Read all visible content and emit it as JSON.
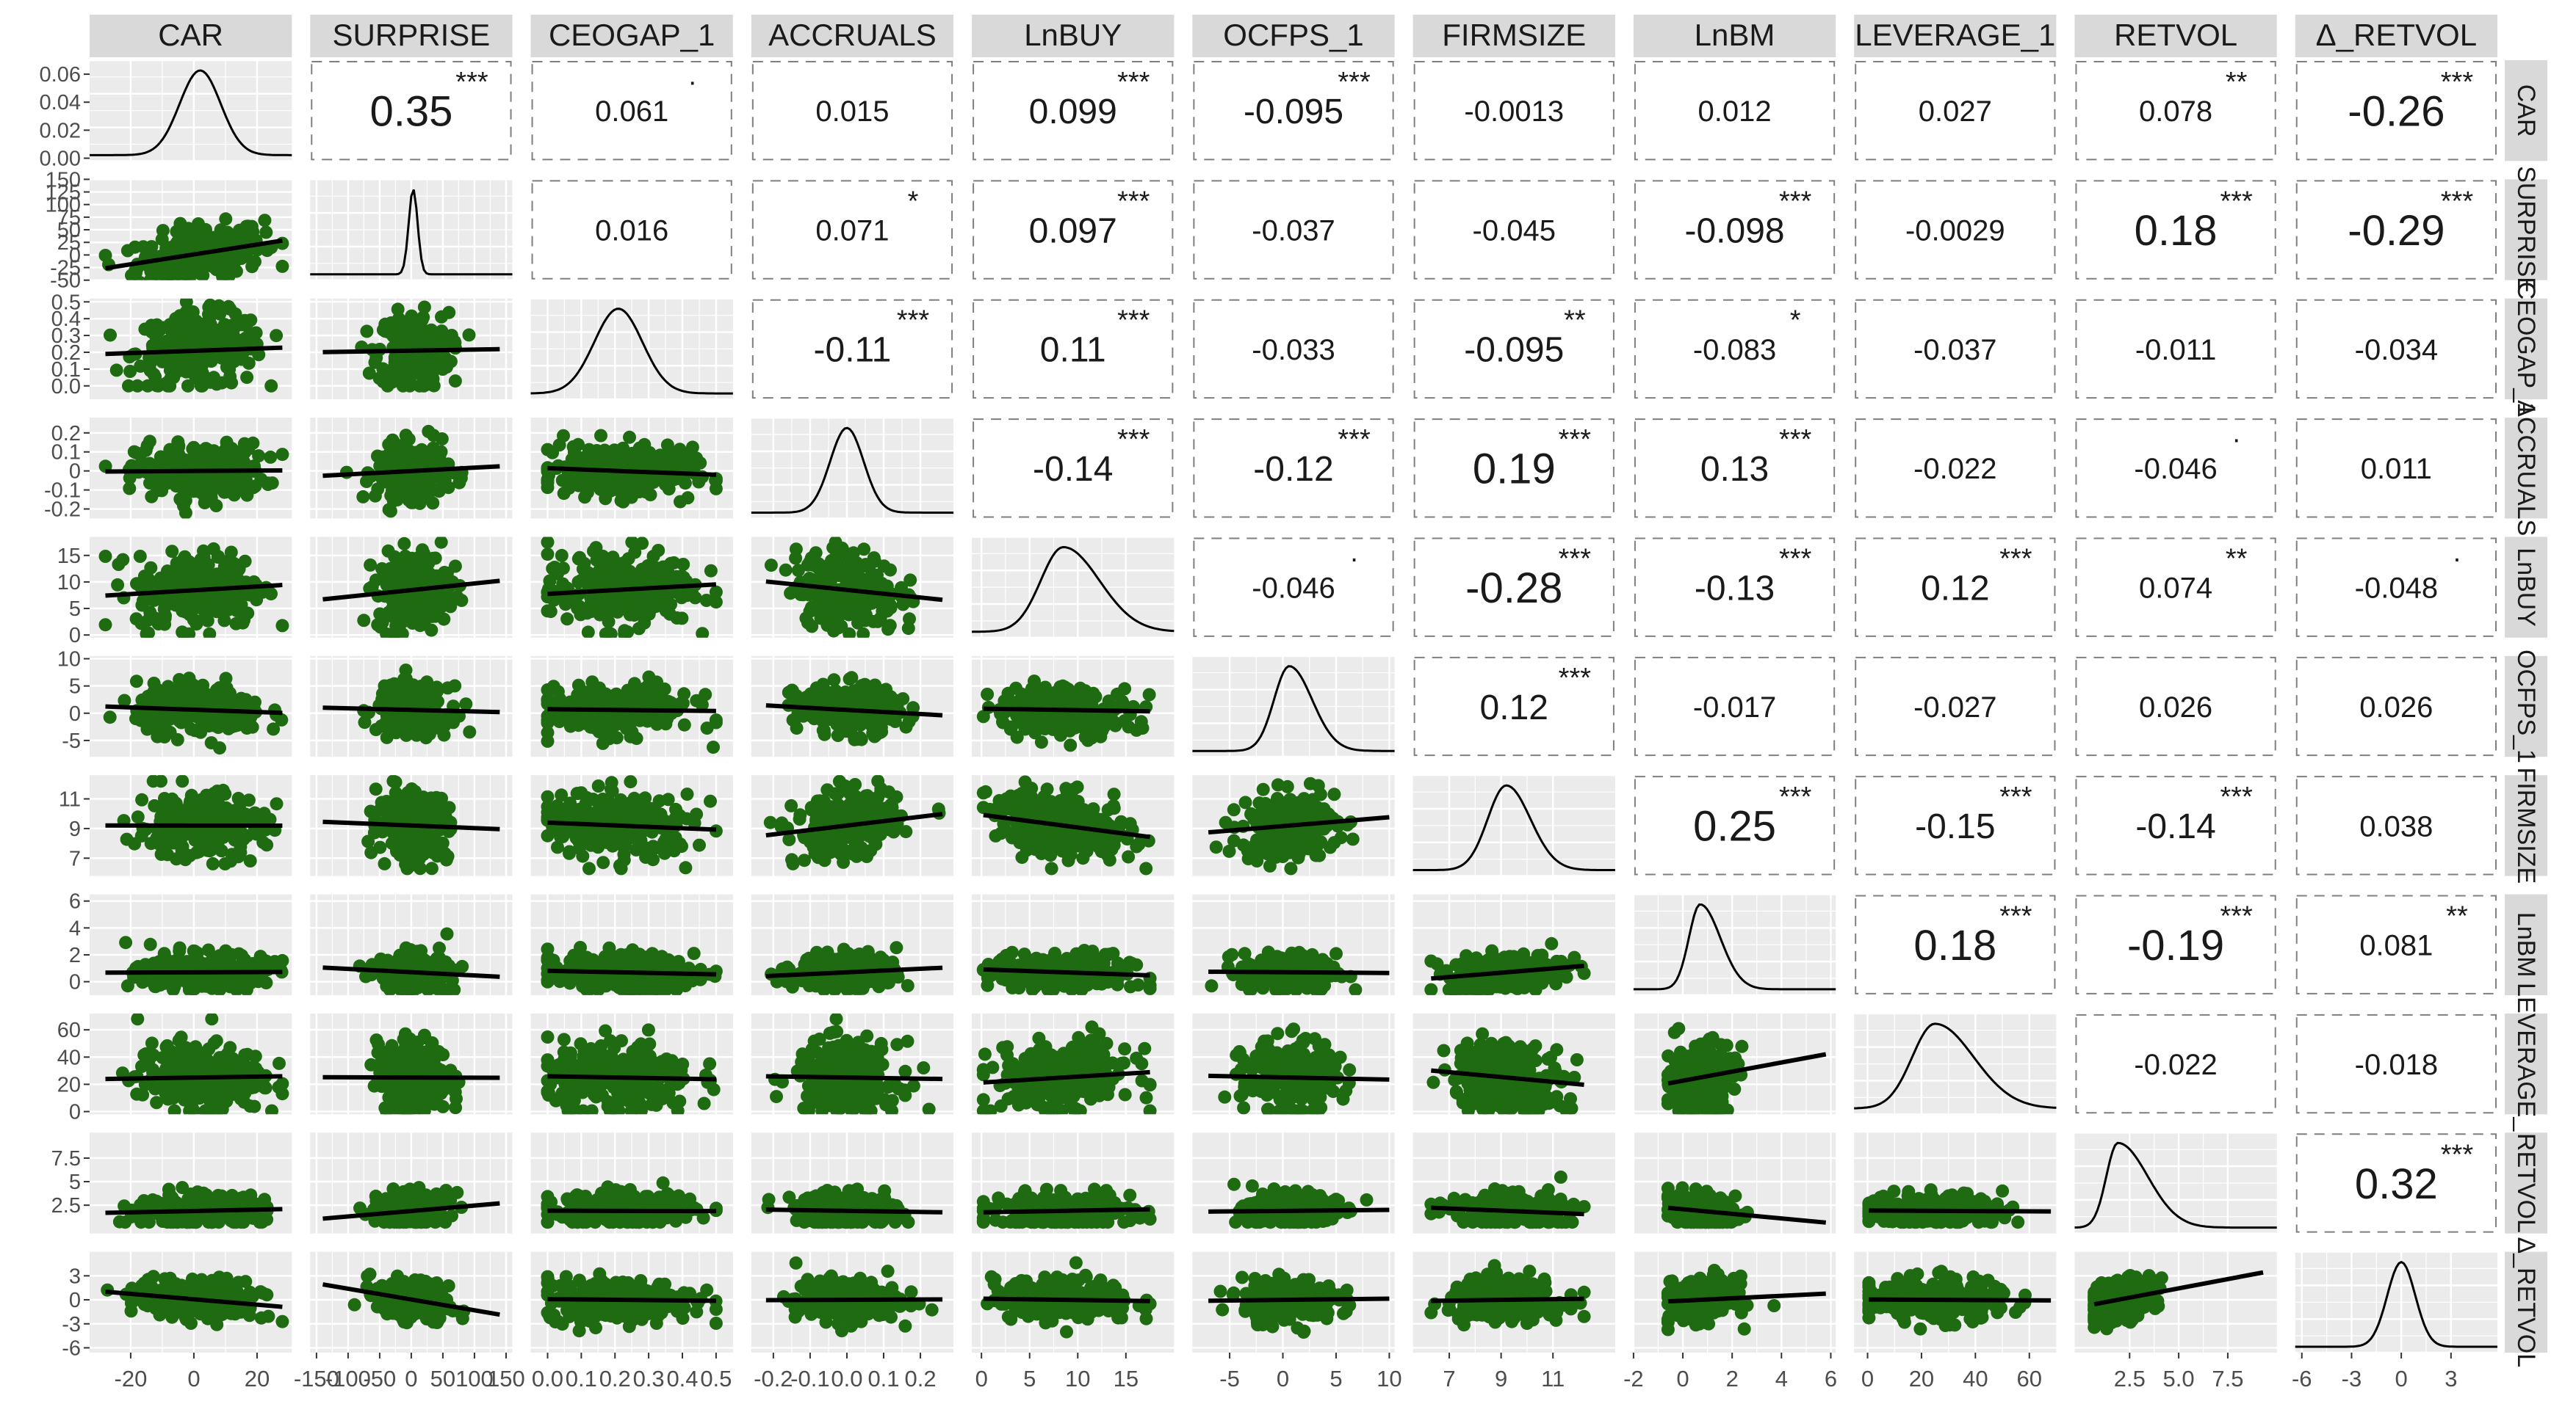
{
  "chart_data": {
    "type": "scatter-matrix",
    "variables": [
      "CAR",
      "SURPRISE",
      "CEOGAP_1",
      "ACCRUALS",
      "LnBUY",
      "OCFPS_1",
      "FIRMSIZE",
      "LnBM",
      "LEVERAGE_1",
      "RETVOL",
      "Δ_RETVOL"
    ],
    "axes": [
      {
        "range": [
          -33,
          31
        ],
        "ticks": [
          -20,
          0,
          20
        ],
        "tick_labels": [
          "-20",
          "0",
          "20"
        ]
      },
      {
        "range": [
          -160,
          160
        ],
        "ticks": [
          -150,
          -100,
          -50,
          0,
          50,
          100,
          150
        ],
        "tick_labels": [
          "-150",
          "-100",
          "-50",
          "0",
          "50",
          "100",
          "150"
        ],
        "row_range": [
          -50,
          150
        ],
        "row_ticks": [
          -50,
          -25,
          0,
          25,
          50,
          75,
          100,
          125,
          150
        ],
        "row_tick_labels": [
          "-50",
          "-25",
          "0",
          "25",
          "50",
          "75",
          "100",
          "125",
          "150"
        ]
      },
      {
        "range": [
          -0.05,
          0.55
        ],
        "ticks": [
          0.0,
          0.1,
          0.2,
          0.3,
          0.4,
          0.5
        ],
        "tick_labels": [
          "0.0",
          "0.1",
          "0.2",
          "0.3",
          "0.4",
          "0.5"
        ],
        "row_range": [
          -0.08,
          0.52
        ]
      },
      {
        "range": [
          -0.26,
          0.29
        ],
        "ticks": [
          -0.2,
          -0.1,
          0.0,
          0.1,
          0.2
        ],
        "tick_labels": [
          "-0.2",
          "-0.1",
          "0.0",
          "0.1",
          "0.2"
        ],
        "row_range": [
          -0.25,
          0.28
        ],
        "row_ticks": [
          -0.2,
          -0.1,
          0.0,
          0.1,
          0.2
        ]
      },
      {
        "range": [
          -1,
          20
        ],
        "ticks": [
          0,
          5,
          10,
          15
        ],
        "tick_labels": [
          "0",
          "5",
          "10",
          "15"
        ],
        "row_range": [
          -0.5,
          18.5
        ]
      },
      {
        "range": [
          -8.5,
          10.5
        ],
        "ticks": [
          -5,
          0,
          5,
          10
        ],
        "tick_labels": [
          "-5",
          "0",
          "5",
          "10"
        ],
        "row_range": [
          -8,
          10.5
        ]
      },
      {
        "range": [
          5.6,
          13.4
        ],
        "ticks": [
          7,
          9,
          11
        ],
        "tick_labels": [
          "7",
          "9",
          "11"
        ],
        "row_range": [
          5.8,
          12.6
        ]
      },
      {
        "range": [
          -2,
          6.2
        ],
        "ticks": [
          -2,
          0,
          2,
          4,
          6
        ],
        "tick_labels": [
          "-2",
          "0",
          "2",
          "4",
          "6"
        ],
        "row_range": [
          -1,
          6.5
        ],
        "row_ticks": [
          0,
          2,
          4,
          6
        ]
      },
      {
        "range": [
          -5,
          70
        ],
        "ticks": [
          0,
          20,
          40,
          60
        ],
        "tick_labels": [
          "0",
          "20",
          "40",
          "60"
        ],
        "row_range": [
          -2,
          72
        ]
      },
      {
        "range": [
          -0.3,
          10
        ],
        "ticks": [
          2.5,
          5.0,
          7.5
        ],
        "tick_labels": [
          "2.5",
          "5.0",
          "7.5"
        ],
        "row_range": [
          -0.5,
          10.2
        ],
        "row_ticks": [
          2.5,
          5.0,
          7.5
        ]
      },
      {
        "range": [
          -6.4,
          5.8
        ],
        "ticks": [
          -6,
          -3,
          0,
          3
        ],
        "tick_labels": [
          "-6",
          "-3",
          "0",
          "3"
        ],
        "row_range": [
          -6.6,
          6
        ]
      }
    ],
    "correlations": [
      {
        "row": 0,
        "col": 1,
        "label": "0.35",
        "stars": "***"
      },
      {
        "row": 0,
        "col": 2,
        "label": "0.061",
        "stars": "·"
      },
      {
        "row": 0,
        "col": 3,
        "label": "0.015",
        "stars": ""
      },
      {
        "row": 0,
        "col": 4,
        "label": "0.099",
        "stars": "***"
      },
      {
        "row": 0,
        "col": 5,
        "label": "-0.095",
        "stars": "***"
      },
      {
        "row": 0,
        "col": 6,
        "label": "-0.0013",
        "stars": ""
      },
      {
        "row": 0,
        "col": 7,
        "label": "0.012",
        "stars": ""
      },
      {
        "row": 0,
        "col": 8,
        "label": "0.027",
        "stars": ""
      },
      {
        "row": 0,
        "col": 9,
        "label": "0.078",
        "stars": "**"
      },
      {
        "row": 0,
        "col": 10,
        "label": "-0.26",
        "stars": "***"
      },
      {
        "row": 1,
        "col": 2,
        "label": "0.016",
        "stars": ""
      },
      {
        "row": 1,
        "col": 3,
        "label": "0.071",
        "stars": "*"
      },
      {
        "row": 1,
        "col": 4,
        "label": "0.097",
        "stars": "***"
      },
      {
        "row": 1,
        "col": 5,
        "label": "-0.037",
        "stars": ""
      },
      {
        "row": 1,
        "col": 6,
        "label": "-0.045",
        "stars": ""
      },
      {
        "row": 1,
        "col": 7,
        "label": "-0.098",
        "stars": "***"
      },
      {
        "row": 1,
        "col": 8,
        "label": "-0.0029",
        "stars": ""
      },
      {
        "row": 1,
        "col": 9,
        "label": "0.18",
        "stars": "***"
      },
      {
        "row": 1,
        "col": 10,
        "label": "-0.29",
        "stars": "***"
      },
      {
        "row": 2,
        "col": 3,
        "label": "-0.11",
        "stars": "***"
      },
      {
        "row": 2,
        "col": 4,
        "label": "0.11",
        "stars": "***"
      },
      {
        "row": 2,
        "col": 5,
        "label": "-0.033",
        "stars": ""
      },
      {
        "row": 2,
        "col": 6,
        "label": "-0.095",
        "stars": "**"
      },
      {
        "row": 2,
        "col": 7,
        "label": "-0.083",
        "stars": "*"
      },
      {
        "row": 2,
        "col": 8,
        "label": "-0.037",
        "stars": ""
      },
      {
        "row": 2,
        "col": 9,
        "label": "-0.011",
        "stars": ""
      },
      {
        "row": 2,
        "col": 10,
        "label": "-0.034",
        "stars": ""
      },
      {
        "row": 3,
        "col": 4,
        "label": "-0.14",
        "stars": "***"
      },
      {
        "row": 3,
        "col": 5,
        "label": "-0.12",
        "stars": "***"
      },
      {
        "row": 3,
        "col": 6,
        "label": "0.19",
        "stars": "***"
      },
      {
        "row": 3,
        "col": 7,
        "label": "0.13",
        "stars": "***"
      },
      {
        "row": 3,
        "col": 8,
        "label": "-0.022",
        "stars": ""
      },
      {
        "row": 3,
        "col": 9,
        "label": "-0.046",
        "stars": "·"
      },
      {
        "row": 3,
        "col": 10,
        "label": "0.011",
        "stars": ""
      },
      {
        "row": 4,
        "col": 5,
        "label": "-0.046",
        "stars": "·"
      },
      {
        "row": 4,
        "col": 6,
        "label": "-0.28",
        "stars": "***"
      },
      {
        "row": 4,
        "col": 7,
        "label": "-0.13",
        "stars": "***"
      },
      {
        "row": 4,
        "col": 8,
        "label": "0.12",
        "stars": "***"
      },
      {
        "row": 4,
        "col": 9,
        "label": "0.074",
        "stars": "**"
      },
      {
        "row": 4,
        "col": 10,
        "label": "-0.048",
        "stars": "·"
      },
      {
        "row": 5,
        "col": 6,
        "label": "0.12",
        "stars": "***"
      },
      {
        "row": 5,
        "col": 7,
        "label": "-0.017",
        "stars": ""
      },
      {
        "row": 5,
        "col": 8,
        "label": "-0.027",
        "stars": ""
      },
      {
        "row": 5,
        "col": 9,
        "label": "0.026",
        "stars": ""
      },
      {
        "row": 5,
        "col": 10,
        "label": "0.026",
        "stars": ""
      },
      {
        "row": 6,
        "col": 7,
        "label": "0.25",
        "stars": "***"
      },
      {
        "row": 6,
        "col": 8,
        "label": "-0.15",
        "stars": "***"
      },
      {
        "row": 6,
        "col": 9,
        "label": "-0.14",
        "stars": "***"
      },
      {
        "row": 6,
        "col": 10,
        "label": "0.038",
        "stars": ""
      },
      {
        "row": 7,
        "col": 8,
        "label": "0.18",
        "stars": "***"
      },
      {
        "row": 7,
        "col": 9,
        "label": "-0.19",
        "stars": "***"
      },
      {
        "row": 7,
        "col": 10,
        "label": "0.081",
        "stars": "**"
      },
      {
        "row": 8,
        "col": 9,
        "label": "-0.022",
        "stars": ""
      },
      {
        "row": 8,
        "col": 10,
        "label": "-0.018",
        "stars": ""
      },
      {
        "row": 9,
        "col": 10,
        "label": "0.32",
        "stars": "***"
      }
    ],
    "colors": {
      "point": "#1f6b12",
      "fit_line": "#000000",
      "panel_bg": "#ebebeb",
      "grid": "#ffffff",
      "strip_bg": "#d9d9d9",
      "dashed_box": "#7f7f7f",
      "density": "#000000"
    }
  }
}
